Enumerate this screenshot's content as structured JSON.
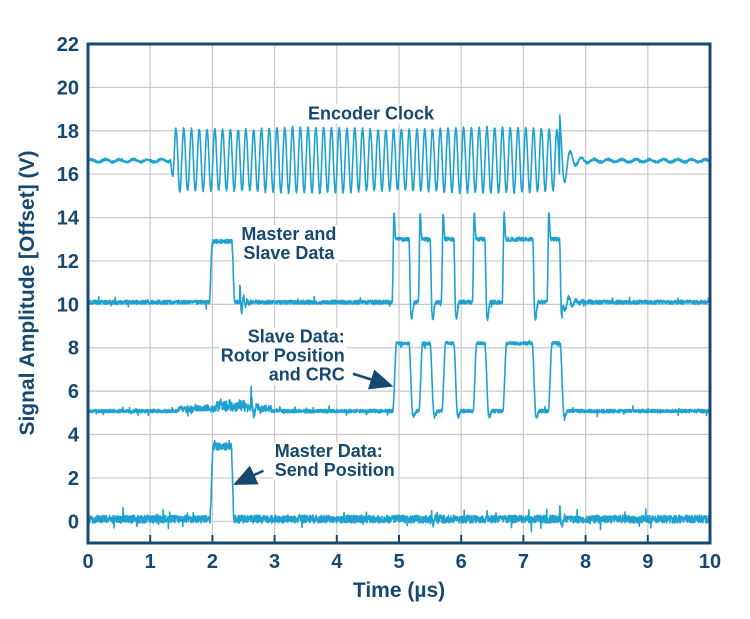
{
  "chart_data": {
    "type": "line",
    "title": "",
    "xlabel": "Time (µs)",
    "ylabel": "Signal Amplitude [Offset] (V)",
    "xlim": [
      0,
      10
    ],
    "ylim": [
      -1,
      22
    ],
    "x_ticks": [
      0,
      1,
      2,
      3,
      4,
      5,
      6,
      7,
      8,
      9,
      10
    ],
    "y_ticks": [
      0,
      2,
      4,
      6,
      8,
      10,
      12,
      14,
      16,
      18,
      20,
      22
    ],
    "grid": true,
    "legend_position": "none",
    "colors": {
      "trace": "#1fa2cf",
      "axis": "#17486f",
      "grid": "#c7c9cb",
      "background": "#ffffff"
    },
    "series": [
      {
        "name": "encoder-clock",
        "label": "Encoder Clock",
        "kind": "clock_burst",
        "offset": 16.62,
        "burst_start": 1.32,
        "burst_end": 7.58,
        "cycles_per_us": 8.0,
        "high": 18.1,
        "low": 15.2,
        "end_spike_v": 18.85,
        "idle_ripple": 0.06,
        "noise": 0.12
      },
      {
        "name": "master-and-slave-data",
        "label": "Master and Slave Data",
        "kind": "digital",
        "offset": 10.1,
        "noise": 0.09,
        "pulses": [
          {
            "t0": 1.95,
            "t1": 2.31,
            "level": 12.9,
            "rise": 0.05,
            "overshoot": 0,
            "undershoot": 0
          },
          {
            "t0": 4.89,
            "t1": 5.16,
            "level": 13.0,
            "rise": 0.03,
            "overshoot": 14.2,
            "undershoot": 9.35
          },
          {
            "t0": 5.31,
            "t1": 5.5,
            "level": 13.0,
            "rise": 0.03,
            "overshoot": 14.2,
            "undershoot": 9.35
          },
          {
            "t0": 5.68,
            "t1": 5.88,
            "level": 13.0,
            "rise": 0.03,
            "overshoot": 14.2,
            "undershoot": 9.35
          },
          {
            "t0": 6.18,
            "t1": 6.38,
            "level": 13.0,
            "rise": 0.03,
            "overshoot": 14.2,
            "undershoot": 9.35
          },
          {
            "t0": 6.66,
            "t1": 7.15,
            "level": 13.0,
            "rise": 0.03,
            "overshoot": 14.2,
            "undershoot": 9.35
          },
          {
            "t0": 7.38,
            "t1": 7.58,
            "level": 13.0,
            "rise": 0.03,
            "overshoot": 14.2,
            "undershoot": 9.35
          }
        ],
        "glitches": [
          {
            "t": 2.44,
            "amp": 0.85,
            "freq": 16,
            "decay": 18
          },
          {
            "t": 7.62,
            "amp": 0.6,
            "freq": 9,
            "decay": 8
          }
        ],
        "activity": []
      },
      {
        "name": "slave-data",
        "label": "Slave Data: Rotor Position and CRC",
        "kind": "digital",
        "offset": 5.08,
        "noise": 0.08,
        "pulses": [
          {
            "t0": 4.9,
            "t1": 5.16,
            "level": 8.2,
            "rise": 0.06,
            "overshoot": 0,
            "undershoot": 4.82
          },
          {
            "t0": 5.32,
            "t1": 5.5,
            "level": 8.2,
            "rise": 0.06,
            "overshoot": 0,
            "undershoot": 4.82
          },
          {
            "t0": 5.69,
            "t1": 5.88,
            "level": 8.2,
            "rise": 0.06,
            "overshoot": 0,
            "undershoot": 4.82
          },
          {
            "t0": 6.19,
            "t1": 6.38,
            "level": 8.2,
            "rise": 0.06,
            "overshoot": 0,
            "undershoot": 4.82
          },
          {
            "t0": 6.67,
            "t1": 7.14,
            "level": 8.2,
            "rise": 0.06,
            "overshoot": 0,
            "undershoot": 4.82
          },
          {
            "t0": 7.4,
            "t1": 7.59,
            "level": 8.2,
            "rise": 0.06,
            "overshoot": 0,
            "undershoot": 4.82
          }
        ],
        "glitches": [
          {
            "t": 2.62,
            "amp": 0.78,
            "freq": 10,
            "decay": 20
          }
        ],
        "activity": [
          {
            "t0": 1.45,
            "t1": 2.05,
            "amp": 0.22
          },
          {
            "t0": 2.05,
            "t1": 2.55,
            "amp": 0.45
          },
          {
            "t0": 2.55,
            "t1": 2.95,
            "amp": 0.25
          }
        ]
      },
      {
        "name": "master-data",
        "label": "Master Data: Send Position",
        "kind": "digital",
        "offset": 0.1,
        "noise": 0.18,
        "pulses": [
          {
            "t0": 1.96,
            "t1": 2.3,
            "level": 3.45,
            "rise": 0.05,
            "overshoot": 0,
            "undershoot": 0
          }
        ],
        "glitches": [
          {
            "t": 5.52,
            "amp": 0.45,
            "freq": 14,
            "decay": 22
          },
          {
            "t": 7.58,
            "amp": 0.9,
            "freq": 12,
            "decay": 25
          }
        ],
        "activity": []
      }
    ],
    "annotations": [
      {
        "name": "encoder-clock",
        "lines": [
          "Encoder Clock"
        ],
        "align": "center",
        "t": 4.55,
        "v": 18.78,
        "arrow": null
      },
      {
        "name": "master-and-slave-data",
        "lines": [
          "Master and",
          "Slave Data"
        ],
        "align": "center",
        "t": 3.23,
        "v": 12.8,
        "arrow": null
      },
      {
        "name": "slave-data",
        "lines": [
          "Slave Data:",
          "Rotor Position",
          "and CRC"
        ],
        "align": "right",
        "t": 4.16,
        "v": 7.6,
        "arrow": {
          "from_t": 4.26,
          "from_v": 6.8,
          "to_t": 4.87,
          "to_v": 6.25
        }
      },
      {
        "name": "master-data",
        "lines": [
          "Master Data:",
          "Send Position"
        ],
        "align": "left",
        "t": 2.97,
        "v": 2.78,
        "arrow": {
          "from_t": 2.82,
          "from_v": 2.33,
          "to_t": 2.37,
          "to_v": 1.73
        }
      }
    ]
  }
}
